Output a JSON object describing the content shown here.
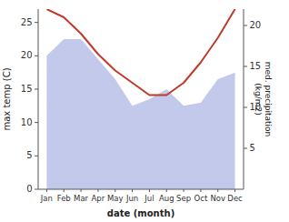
{
  "chart_data": {
    "type": "line",
    "categories": [
      "Jan",
      "Feb",
      "Mar",
      "Apr",
      "May",
      "Jun",
      "Jul",
      "Aug",
      "Sep",
      "Oct",
      "Nov",
      "Dec"
    ],
    "xlabel": "date (month)",
    "ylabel": "max temp (C)",
    "y2label": "med. precipitation\n(kg/m2)",
    "series": [
      {
        "type": "area",
        "color": "#b8c0e8",
        "values": [
          20.0,
          22.5,
          22.5,
          19.5,
          16.5,
          12.5,
          13.5,
          15.0,
          12.5,
          13.0,
          16.5,
          17.5
        ]
      },
      {
        "type": "line",
        "color": "#c0392b",
        "axis": "y2",
        "values": [
          22.0,
          21.0,
          19.0,
          16.5,
          14.5,
          13.0,
          11.5,
          11.5,
          13.0,
          15.5,
          18.5,
          22.0
        ]
      }
    ],
    "ylim": [
      0,
      27
    ],
    "yticks": [
      0,
      5,
      10,
      15,
      20,
      25
    ],
    "y2lim": [
      0,
      22
    ],
    "y2ticks": [
      5,
      10,
      15,
      20
    ],
    "grid": false
  }
}
